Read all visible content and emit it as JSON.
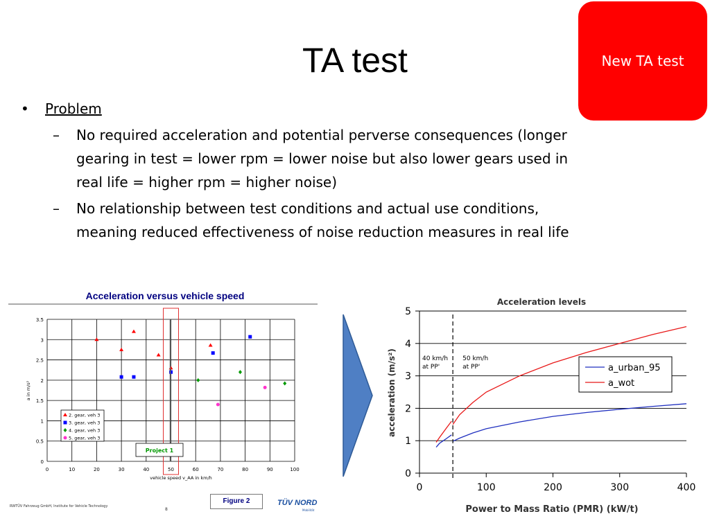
{
  "slide": {
    "title": "TA test",
    "badge": "New TA test",
    "bullet": "Problem",
    "subbullets": [
      [
        "No required acceleration and potential perverse consequences (longer",
        "gearing in test = lower rpm = lower noise but also lower gears used in",
        "real life = higher rpm = higher noise)"
      ],
      [
        "No relationship between test conditions and actual use conditions,",
        "meaning reduced effectiveness of noise reduction measures in real life"
      ]
    ],
    "footer_left": "RWTÜV Fahrzeug GmbH, Institute for Vehicle Technology",
    "footer_num": "8",
    "figure_label": "Figure 2",
    "logo_text": "TÜV NORD",
    "logo_sub": "Mobilität",
    "colors": {
      "badge": "#ff0000",
      "arrow": "#4f7fc4",
      "chart1_title": "#000080"
    }
  },
  "chart_data": [
    {
      "type": "scatter",
      "title": "Acceleration versus vehicle speed",
      "xlabel": "vehicle speed v_AA in km/h",
      "ylabel": "a in m/s²",
      "xlim": [
        0,
        100
      ],
      "ylim": [
        0,
        3.5
      ],
      "xticks": [
        0,
        10,
        20,
        30,
        40,
        50,
        60,
        70,
        80,
        90,
        100
      ],
      "yticks": [
        0,
        0.5,
        1,
        1.5,
        2,
        2.5,
        3,
        3.5
      ],
      "grid": true,
      "legend_position": "bottom-left",
      "annotation": "Project 1",
      "highlight_x": 50,
      "series": [
        {
          "name": "2. gear, veh 3",
          "marker": "triangle",
          "color": "#ff0000",
          "points": [
            [
              20,
              3.0
            ],
            [
              30,
              2.75
            ],
            [
              35,
              3.2
            ],
            [
              45,
              2.62
            ],
            [
              50,
              2.3
            ],
            [
              66,
              2.86
            ]
          ]
        },
        {
          "name": "3. gear, veh 3",
          "marker": "square",
          "color": "#0000ff",
          "points": [
            [
              30,
              2.08
            ],
            [
              35,
              2.08
            ],
            [
              50,
              2.2
            ],
            [
              67,
              2.67
            ],
            [
              82,
              3.07
            ]
          ]
        },
        {
          "name": "4. gear, veh 3",
          "marker": "diamond",
          "color": "#009900",
          "points": [
            [
              61,
              2.0
            ],
            [
              78,
              2.2
            ],
            [
              96,
              1.92
            ]
          ]
        },
        {
          "name": "5. gear, veh 3",
          "marker": "circle",
          "color": "#ff33cc",
          "points": [
            [
              69,
              1.4
            ],
            [
              88,
              1.82
            ]
          ]
        }
      ]
    },
    {
      "type": "line",
      "title": "Acceleration levels",
      "xlabel": "Power to Mass Ratio (PMR) (kW/t)",
      "ylabel": "acceleration (m/s²)",
      "xlim": [
        0,
        400
      ],
      "ylim": [
        0,
        5
      ],
      "xticks": [
        0,
        100,
        200,
        300,
        400
      ],
      "yticks": [
        0,
        1,
        2,
        3,
        4,
        5
      ],
      "grid": "horizontal",
      "legend_position": "right",
      "vline_x": 50,
      "annotations": [
        "40 km/h at PP'",
        "50 km/h at PP'"
      ],
      "series": [
        {
          "name": "a_urban_95",
          "color": "#1f2fbf",
          "x": [
            25,
            30,
            40,
            48,
            50,
            60,
            80,
            100,
            150,
            200,
            250,
            300,
            350,
            400
          ],
          "y": [
            0.8,
            0.92,
            1.06,
            1.18,
            0.98,
            1.08,
            1.24,
            1.37,
            1.58,
            1.75,
            1.87,
            1.97,
            2.06,
            2.14
          ]
        },
        {
          "name": "a_wot",
          "color": "#e81818",
          "x": [
            25,
            30,
            40,
            48,
            50,
            60,
            80,
            100,
            150,
            200,
            250,
            300,
            350,
            400
          ],
          "y": [
            0.95,
            1.1,
            1.38,
            1.6,
            1.5,
            1.8,
            2.18,
            2.5,
            3.0,
            3.4,
            3.72,
            4.0,
            4.28,
            4.52
          ]
        }
      ]
    }
  ]
}
